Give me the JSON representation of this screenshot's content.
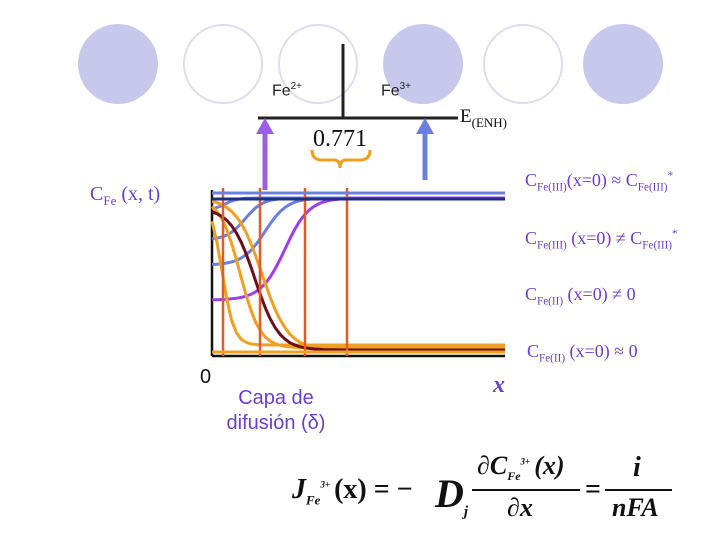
{
  "labels": {
    "fe2_base": "Fe",
    "fe2_charge": "2+",
    "fe3_base": "Fe",
    "fe3_charge": "3+",
    "e_base": "E",
    "e_sub": "(ENH)",
    "potential": "0.771",
    "c_base": "C",
    "c_sub": "Fe",
    "c_args": " (x, t)",
    "zero": "0",
    "layer_line1": "Capa de",
    "layer_line2": "difusión (δ)",
    "x_axis": "x"
  },
  "conditions": [
    {
      "c": "C",
      "sub1": "Fe(III)",
      "mid": "(x=0) ≈ C",
      "sub2": "Fe(III)",
      "end": "*"
    },
    {
      "c": "C",
      "sub1": "Fe(III)",
      "mid": " (x=0) ≠ C",
      "sub2": "Fe(III)",
      "end": "*"
    },
    {
      "c": "C",
      "sub1": "Fe(II)",
      "mid": " (x=0) ≠ 0",
      "sub2": "",
      "end": ""
    },
    {
      "c": "C",
      "sub1": "Fe(II)",
      "mid": " (x=0) ≈ 0",
      "sub2": "",
      "end": ""
    }
  ],
  "equation": {
    "J": "J",
    "J_sub": "Fe",
    "J_sup": "3+",
    "lhs_arg": "(x) = −",
    "D": "D",
    "D_sub": "j",
    "partial_top": "∂C",
    "partial_top_sub": "Fe",
    "partial_top_sup": "3+",
    "partial_top_arg": "(x)",
    "partial_bottom": "∂x",
    "eq": "=",
    "rhs_top": "i",
    "rhs_bottom": "nFA"
  },
  "colors": {
    "decor_dark": "#c8c8ec",
    "arrow_purple": "#9b5de5",
    "arrow_blue": "#6b7fe0",
    "brace": "#f0a020",
    "orange_line": "#e05a2a",
    "navy": "#1c2f8a",
    "fe3_blue": "#6b7fe0",
    "fe3_violet": "#9b3ff0",
    "fe2_orange": "#f0a020",
    "dark_red": "#6b0f1a"
  }
}
